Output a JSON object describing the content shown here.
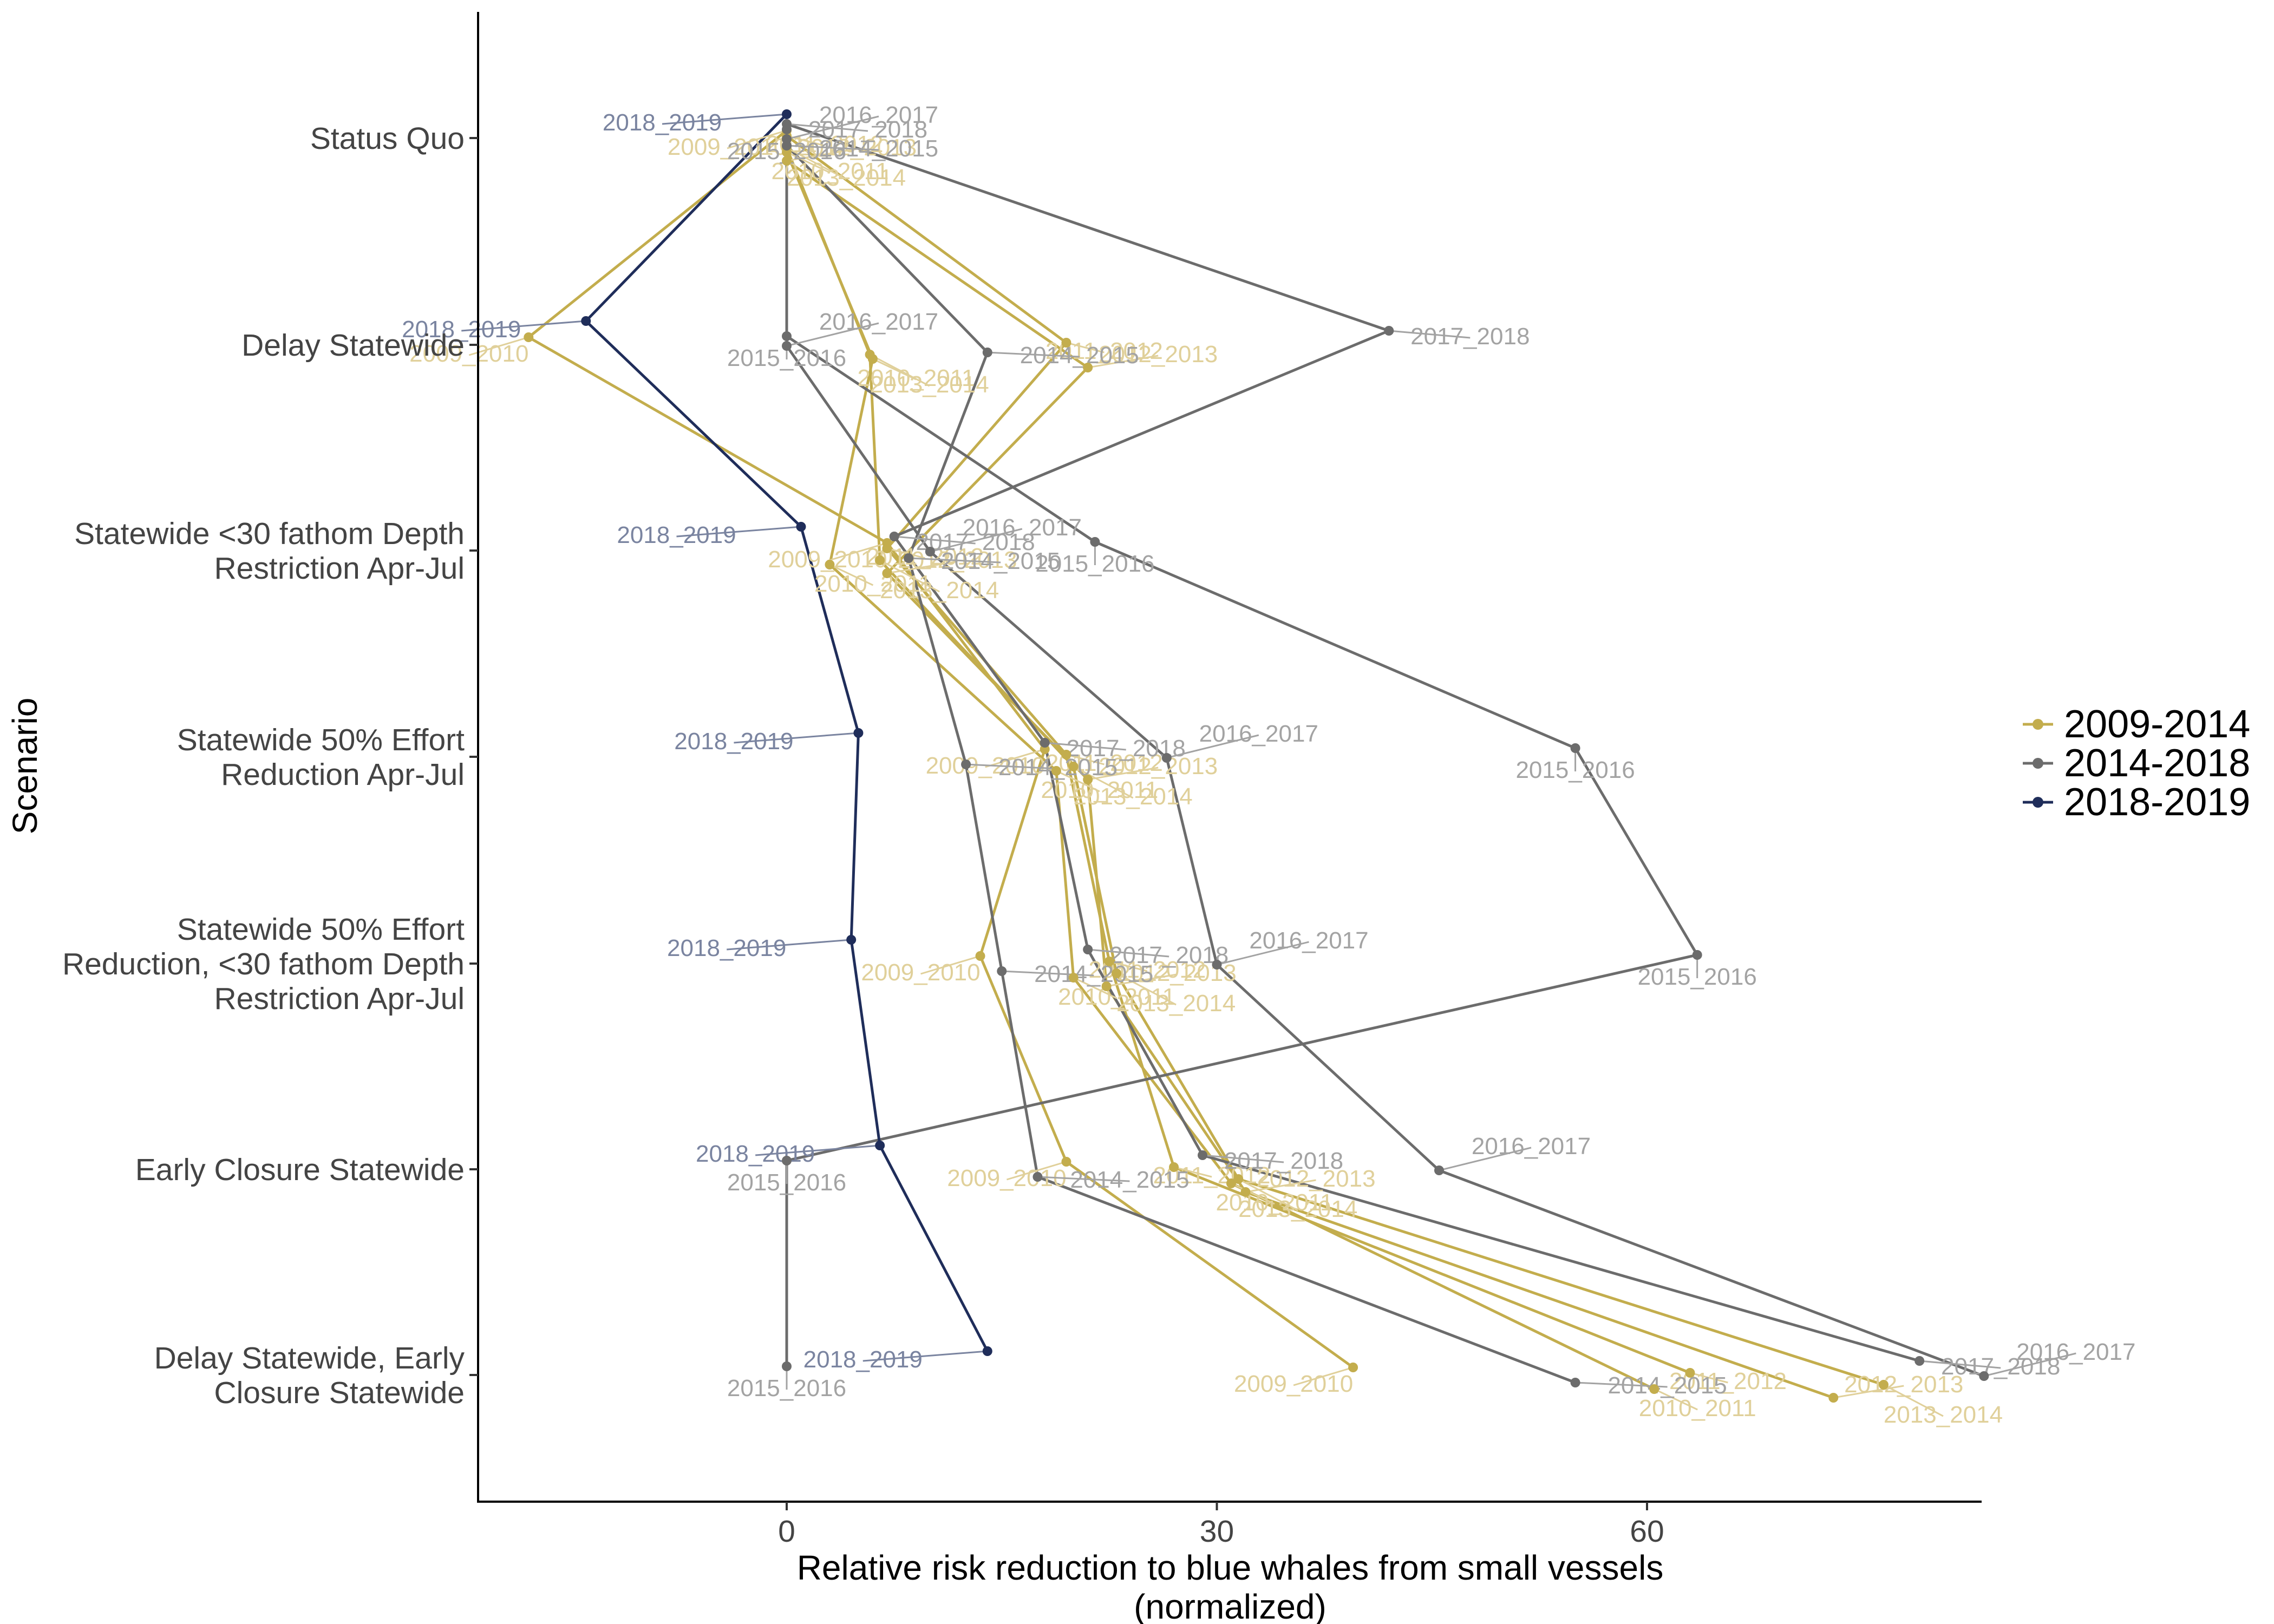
{
  "chart_data": {
    "type": "line",
    "xlabel": [
      "Relative risk reduction to blue whales from small vessels",
      "(normalized)"
    ],
    "ylabel": "Scenario",
    "xlim": [
      -15.5,
      65.5
    ],
    "xticks": [
      0,
      30,
      60
    ],
    "categories": [
      [
        "Status Quo"
      ],
      [
        "Delay Statewide"
      ],
      [
        "Statewide <30 fathom Depth",
        "Restriction Apr-Jul"
      ],
      [
        "Statewide 50% Effort",
        "Reduction Apr-Jul"
      ],
      [
        "Statewide 50% Effort",
        "Reduction, <30 fathom Depth",
        "Restriction Apr-Jul"
      ],
      [
        "Early Closure Statewide"
      ],
      [
        "Delay Statewide, Early",
        "Closure Statewide"
      ]
    ],
    "legend": [
      "2009-2014",
      "2014-2018",
      "2018-2019"
    ],
    "colors": {
      "2009-2014": "#c3ad4d",
      "2014-2018": "#6c6c6c",
      "2018-2019": "#1f2d5a"
    },
    "label_colors": {
      "2009-2014": "#e0d09a",
      "2014-2018": "#a3a3a3",
      "2018-2019": "#7a84a0"
    },
    "series": [
      {
        "name": "2009_2010",
        "group": "2009-2014",
        "values": [
          0.0,
          -18.0,
          7.0,
          18.0,
          13.5,
          19.5,
          39.5
        ]
      },
      {
        "name": "2010_2011",
        "group": "2009-2014",
        "values": [
          0.0,
          6.0,
          3.0,
          18.8,
          20.0,
          31.0,
          60.5
        ]
      },
      {
        "name": "2011_2012",
        "group": "2009-2014",
        "values": [
          0.0,
          19.5,
          7.0,
          19.5,
          22.5,
          27.0,
          63.0
        ]
      },
      {
        "name": "2012_2013",
        "group": "2009-2014",
        "values": [
          0.0,
          21.0,
          7.0,
          21.0,
          22.3,
          32.0,
          73.0
        ]
      },
      {
        "name": "2013_2014",
        "group": "2009-2014",
        "values": [
          0.0,
          5.8,
          6.5,
          20.0,
          23.0,
          31.5,
          76.5
        ]
      },
      {
        "name": "2014_2015",
        "group": "2014-2018",
        "values": [
          0.0,
          14.0,
          8.5,
          12.5,
          15.0,
          17.5,
          55.0
        ]
      },
      {
        "name": "2015_2016",
        "group": "2014-2018",
        "values": [
          0.0,
          0.0,
          21.5,
          55.0,
          63.5,
          0.0,
          0.0
        ]
      },
      {
        "name": "2016_2017",
        "group": "2014-2018",
        "values": [
          0.0,
          0.0,
          10.0,
          26.5,
          30.0,
          45.5,
          83.5
        ]
      },
      {
        "name": "2017_2018",
        "group": "2014-2018",
        "values": [
          0.0,
          42.0,
          7.5,
          18.0,
          21.0,
          29.0,
          79.0
        ]
      },
      {
        "name": "2018_2019",
        "group": "2018-2019",
        "values": [
          0.0,
          -14.0,
          1.0,
          5.0,
          4.5,
          6.5,
          14.0
        ]
      }
    ]
  }
}
